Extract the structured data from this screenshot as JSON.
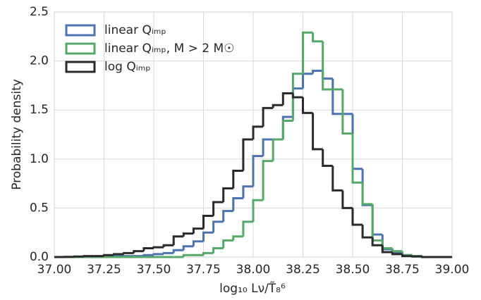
{
  "chart_data": {
    "type": "histogram",
    "xlabel": "log₁₀ Lν/T̃₈⁶",
    "ylabel": "Probability density",
    "bins": [
      37.0,
      37.05,
      37.1,
      37.15,
      37.2,
      37.25,
      37.3,
      37.35,
      37.4,
      37.45,
      37.5,
      37.55,
      37.6,
      37.65,
      37.7,
      37.75,
      37.8,
      37.85,
      37.9,
      37.95,
      38.0,
      38.05,
      38.1,
      38.15,
      38.2,
      38.25,
      38.3,
      38.35,
      38.4,
      38.45,
      38.5,
      38.55,
      38.6,
      38.65,
      38.7,
      38.75,
      38.8,
      38.85,
      38.9,
      38.95,
      39.0
    ],
    "series": [
      {
        "name": "linear Qᵢₘₚ",
        "color": "#4c72b0",
        "values": [
          0,
          0,
          0,
          0,
          0,
          0,
          0.01,
          0.01,
          0.01,
          0.02,
          0.03,
          0.04,
          0.07,
          0.11,
          0.16,
          0.25,
          0.36,
          0.47,
          0.6,
          0.72,
          1.03,
          1.2,
          1.2,
          1.43,
          1.72,
          1.87,
          1.9,
          1.82,
          1.46,
          1.46,
          0.9,
          0.53,
          0.23,
          0.08,
          0.05,
          0.02,
          0.01,
          0,
          0,
          0
        ]
      },
      {
        "name": "linear Qᵢₘₚ, M > 2 M☉",
        "color": "#55a868",
        "values": [
          0,
          0,
          0,
          0,
          0,
          0,
          0,
          0,
          0,
          0,
          0,
          0,
          0,
          0.02,
          0.02,
          0.04,
          0.09,
          0.17,
          0.21,
          0.36,
          0.58,
          0.98,
          1.2,
          1.39,
          1.87,
          2.29,
          2.2,
          1.71,
          1.71,
          1.26,
          0.76,
          0.54,
          0.17,
          0.09,
          0.06,
          0.02,
          0.01,
          0,
          0,
          0
        ]
      },
      {
        "name": "log Qᵢₘₚ",
        "color": "#2a2a2a",
        "values": [
          0,
          0.002,
          0.005,
          0.01,
          0.01,
          0.02,
          0.03,
          0.04,
          0.06,
          0.09,
          0.1,
          0.12,
          0.21,
          0.24,
          0.29,
          0.42,
          0.56,
          0.7,
          0.88,
          1.2,
          1.33,
          1.52,
          1.55,
          1.67,
          1.63,
          1.47,
          1.1,
          0.93,
          0.68,
          0.5,
          0.33,
          0.2,
          0.12,
          0.05,
          0.03,
          0.01,
          0.005,
          0,
          0,
          0
        ]
      }
    ],
    "xlim": [
      37.0,
      39.0
    ],
    "xticks": [
      {
        "value": 37.0,
        "label": "37.00"
      },
      {
        "value": 37.25,
        "label": "37.25"
      },
      {
        "value": 37.5,
        "label": "37.50"
      },
      {
        "value": 37.75,
        "label": "37.75"
      },
      {
        "value": 38.0,
        "label": "38.00"
      },
      {
        "value": 38.25,
        "label": "38.25"
      },
      {
        "value": 38.5,
        "label": "38.50"
      },
      {
        "value": 38.75,
        "label": "38.75"
      },
      {
        "value": 39.0,
        "label": "39.00"
      }
    ],
    "ylim": [
      0,
      2.5
    ],
    "yticks": [
      {
        "value": 0,
        "label": "0.0"
      },
      0.5,
      {
        "value": 1,
        "label": "1.0"
      },
      1.5,
      {
        "value": 2,
        "label": "2.0"
      },
      2.5
    ],
    "grid": true,
    "legend": "upper left"
  }
}
